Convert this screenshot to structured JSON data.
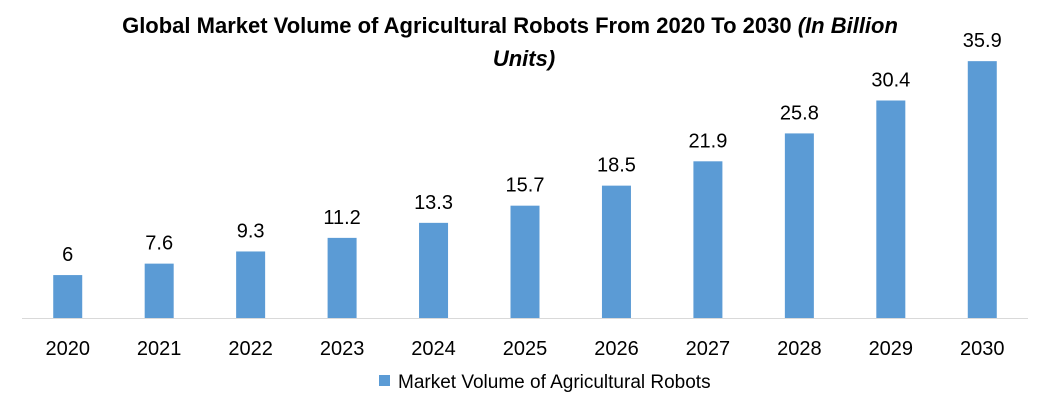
{
  "chart_data": {
    "type": "bar",
    "title": "Global Market Volume of Agricultural Robots From 2020 To 2030",
    "title_italic": "(In Billion Units)",
    "xlabel": "",
    "ylabel": "",
    "categories": [
      "2020",
      "2021",
      "2022",
      "2023",
      "2024",
      "2025",
      "2026",
      "2027",
      "2028",
      "2029",
      "2030"
    ],
    "series": [
      {
        "name": "Market Volume of Agricultural Robots",
        "values": [
          6,
          7.6,
          9.3,
          11.2,
          13.3,
          15.7,
          18.5,
          21.9,
          25.8,
          30.4,
          35.9
        ],
        "color": "#5b9bd5"
      }
    ],
    "ylim": [
      0,
      36.9
    ],
    "grid": false,
    "legend_position": "bottom"
  }
}
